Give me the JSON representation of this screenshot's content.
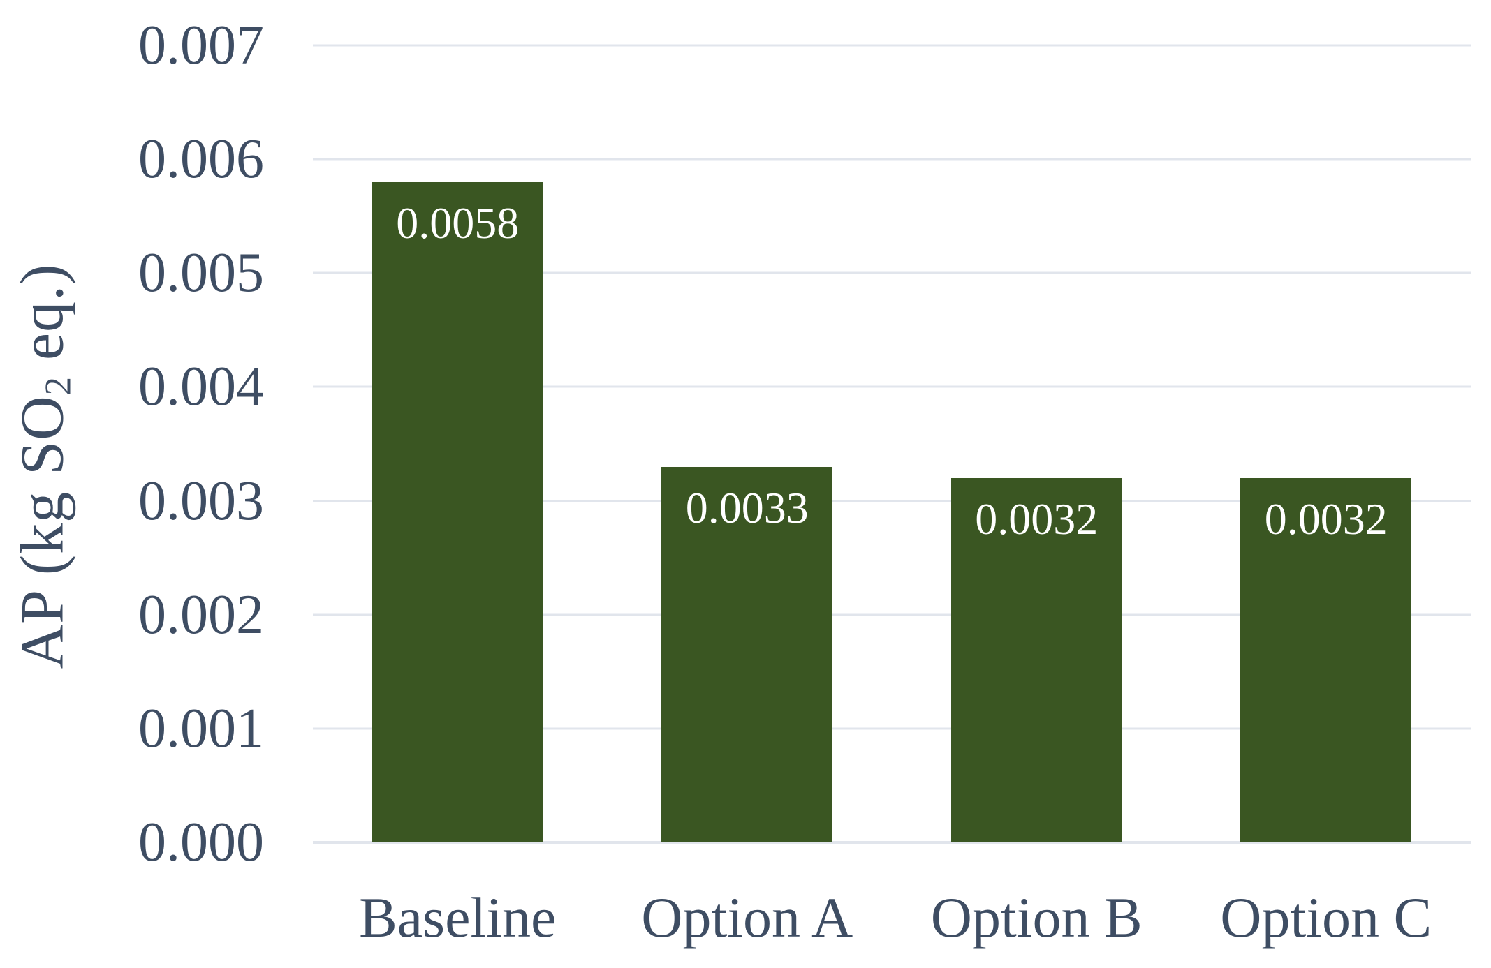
{
  "figure": {
    "background_color": "#FFFFFF"
  },
  "chart_data": {
    "type": "bar",
    "title": "",
    "categories": [
      "Baseline",
      "Option A",
      "Option B",
      "Option C"
    ],
    "values": [
      0.0058,
      0.0033,
      0.0032,
      0.0032
    ],
    "bar_labels": [
      "0.0058",
      "0.0033",
      "0.0032",
      "0.0032"
    ],
    "xlabel": "",
    "ylabel": "AP (kg SO2 eq.)",
    "ylabel_parts": {
      "pre": "AP (kg SO",
      "sub": "2",
      "post": " eq.)"
    },
    "ylim": [
      0,
      0.007
    ],
    "ytick_step": 0.001,
    "ytick_labels": [
      "0.000",
      "0.001",
      "0.002",
      "0.003",
      "0.004",
      "0.005",
      "0.006",
      "0.007"
    ],
    "grid": "horizontal",
    "legend": "none",
    "colors": {
      "bar": "#3A5622",
      "axis_text": "#3E4D63",
      "gridline": "#E1E5EC",
      "bar_label": "#FFFFFF",
      "background": "#FFFFFF"
    }
  }
}
